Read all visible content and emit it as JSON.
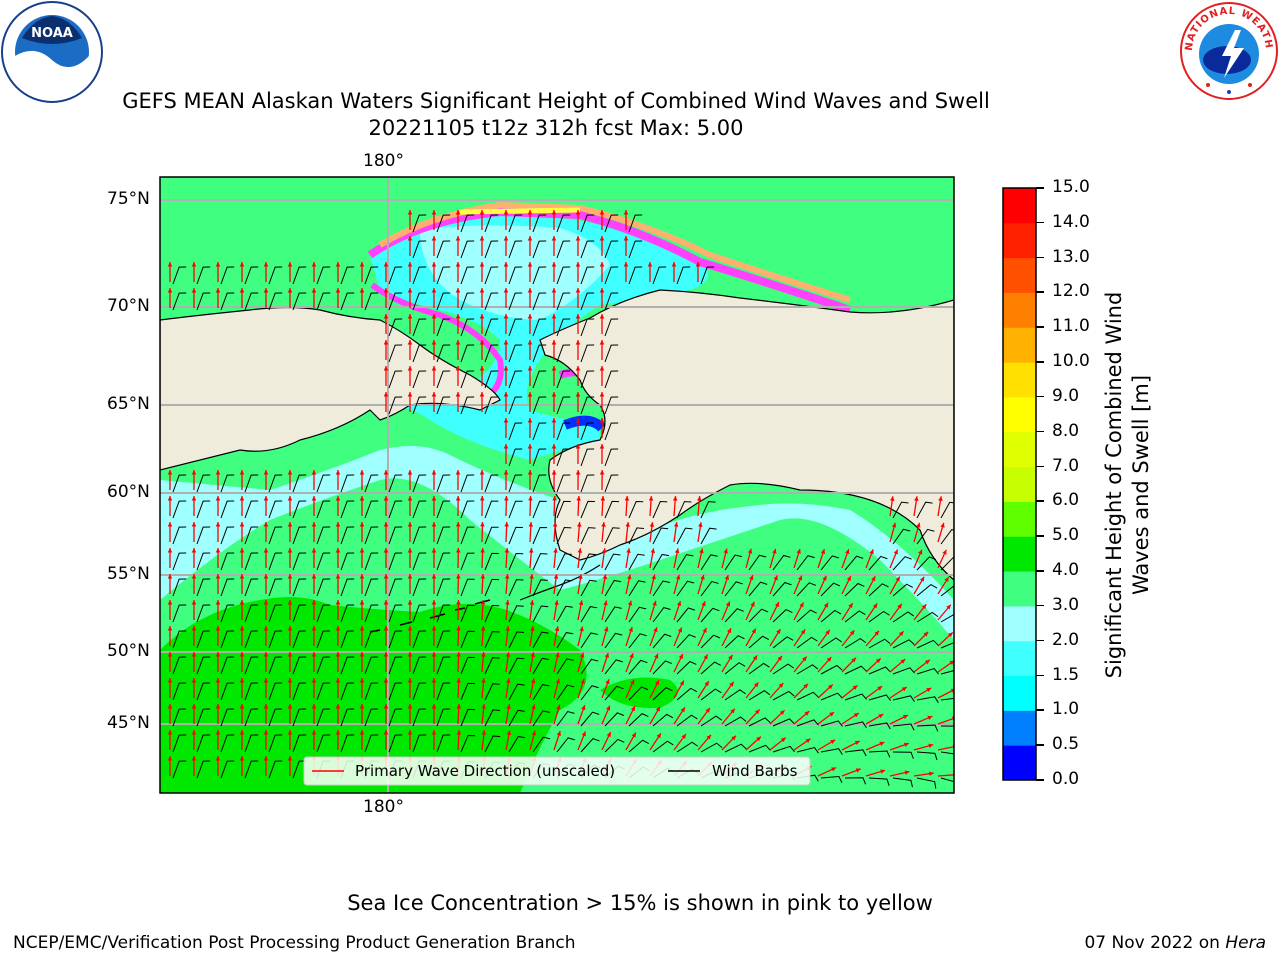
{
  "title": {
    "line1": "GEFS MEAN Alaskan Waters Significant Height of Combined Wind Waves and Swell",
    "line2": "20221105 t12z 312h fcst   Max: 5.00"
  },
  "map": {
    "lon_labels": [
      "180°",
      "180°"
    ],
    "lat_labels": [
      "75°N",
      "70°N",
      "65°N",
      "60°N",
      "55°N",
      "50°N",
      "45°N"
    ],
    "legend": {
      "wave_direction": "Primary Wave Direction (unscaled)",
      "wind_barbs": "Wind Barbs"
    },
    "colors": {
      "land": "#efecdc",
      "wave_arrow": "#ff0000",
      "wind_barb": "#000000",
      "grid": "#b0b0b0"
    }
  },
  "colorbar": {
    "label": "Significant Height of Combined Wind Waves and Swell [m]",
    "ticks": [
      "0.0",
      "0.5",
      "1.0",
      "1.5",
      "2.0",
      "3.0",
      "4.0",
      "5.0",
      "6.0",
      "7.0",
      "8.0",
      "9.0",
      "10.0",
      "11.0",
      "12.0",
      "13.0",
      "14.0",
      "15.0"
    ],
    "colors": [
      "#0000ff",
      "#0080ff",
      "#00ffff",
      "#40ffff",
      "#a0ffff",
      "#40ff80",
      "#00e800",
      "#60ff00",
      "#c8ff00",
      "#e0ff00",
      "#ffff00",
      "#ffe000",
      "#ffb000",
      "#ff8000",
      "#ff5000",
      "#ff2000",
      "#ff0000"
    ]
  },
  "footer": {
    "note": "Sea Ice Concentration > 15% is shown in pink to yellow",
    "left": "NCEP/EMC/Verification Post Processing Product Generation Branch",
    "right_date": "07 Nov 2022 on ",
    "right_host": "Hera"
  },
  "logos": {
    "noaa": "NOAA",
    "nws_arc": "NATIONAL WEATHER SERVICE"
  }
}
